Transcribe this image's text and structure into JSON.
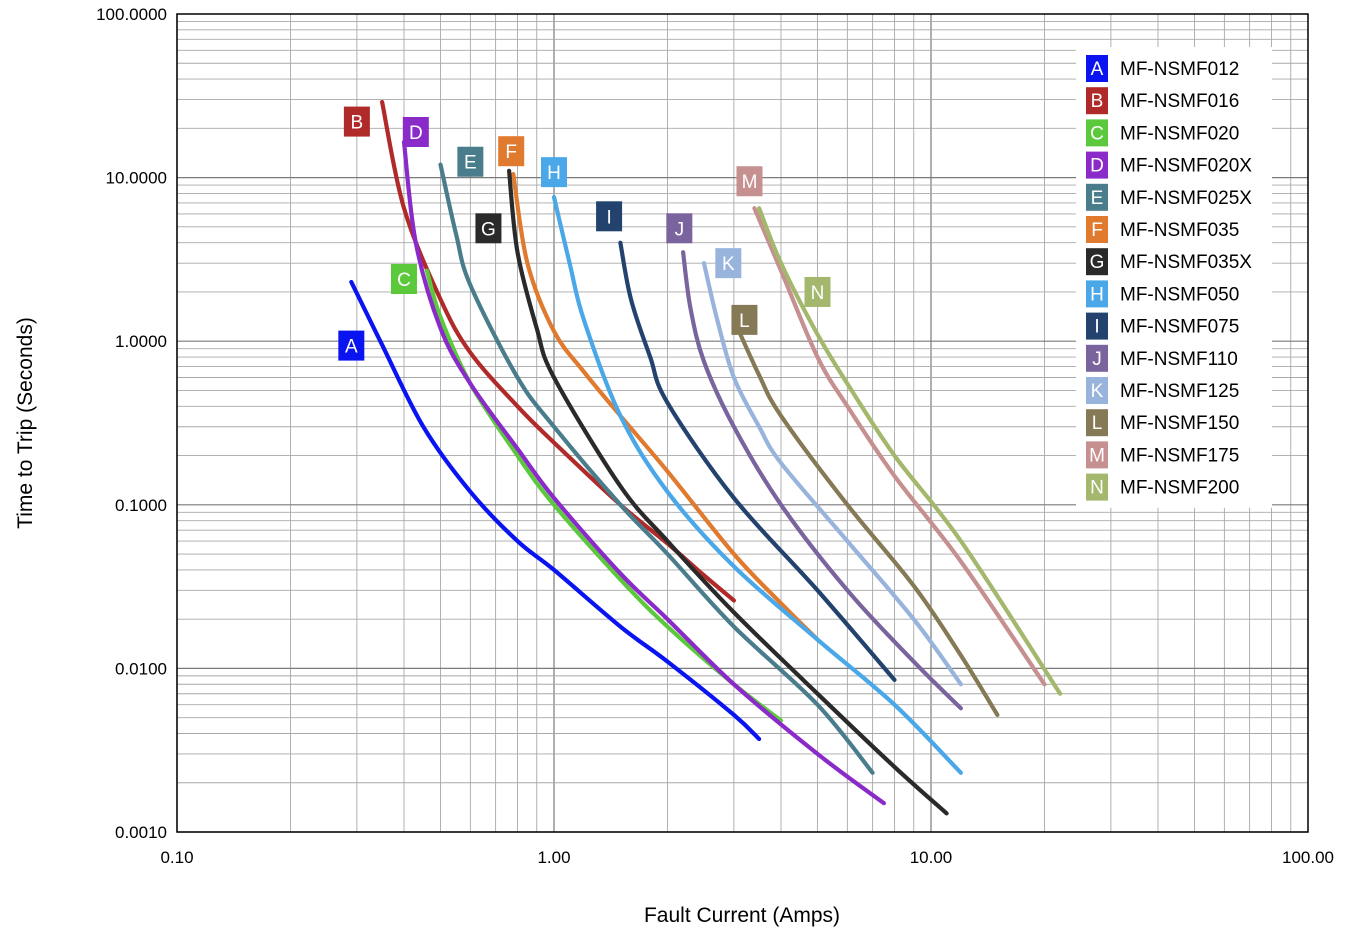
{
  "chart_data": {
    "type": "line",
    "title": "",
    "xlabel": "Fault Current (Amps)",
    "ylabel": "Time to Trip (Seconds)",
    "x_scale": "log",
    "y_scale": "log",
    "xlim": [
      0.1,
      100
    ],
    "ylim": [
      0.001,
      100
    ],
    "grid": true,
    "legend_position": "top-right",
    "x_tick_labels": [
      "0.10",
      "1.00",
      "10.00",
      "100.00"
    ],
    "y_tick_labels": [
      "100.0000",
      "10.0000",
      "1.0000",
      "0.1000",
      "0.0100",
      "0.0010"
    ],
    "series": [
      {
        "letter": "A",
        "name": "MF-NSMF012",
        "color": "#0a14f0",
        "label_at": [
          0.29,
          0.94
        ],
        "x": [
          0.29,
          0.35,
          0.45,
          0.6,
          0.8,
          1.0,
          1.5,
          2.0,
          3.0,
          3.5
        ],
        "y": [
          2.3,
          0.95,
          0.3,
          0.12,
          0.06,
          0.04,
          0.018,
          0.011,
          0.0052,
          0.0037
        ]
      },
      {
        "letter": "B",
        "name": "MF-NSMF016",
        "color": "#b02a2a",
        "label_at": [
          0.3,
          22
        ],
        "x": [
          0.35,
          0.4,
          0.5,
          0.6,
          0.8,
          1.0,
          1.5,
          2.0,
          2.5,
          3.0
        ],
        "y": [
          29,
          6.5,
          1.8,
          0.85,
          0.4,
          0.24,
          0.1,
          0.058,
          0.037,
          0.026
        ]
      },
      {
        "letter": "C",
        "name": "MF-NSMF020",
        "color": "#5cc93c",
        "label_at": [
          0.4,
          2.4
        ],
        "x": [
          0.46,
          0.5,
          0.6,
          0.8,
          1.0,
          1.5,
          2.0,
          3.0,
          4.0
        ],
        "y": [
          2.7,
          1.4,
          0.55,
          0.2,
          0.1,
          0.035,
          0.018,
          0.008,
          0.0048
        ]
      },
      {
        "letter": "D",
        "name": "MF-NSMF020X",
        "color": "#8a2ac9",
        "label_at": [
          0.43,
          19
        ],
        "x": [
          0.4,
          0.43,
          0.5,
          0.6,
          0.8,
          1.0,
          1.5,
          2.0,
          3.0,
          5.0,
          7.5
        ],
        "y": [
          16.5,
          4.0,
          1.2,
          0.55,
          0.22,
          0.11,
          0.038,
          0.02,
          0.008,
          0.003,
          0.0015
        ]
      },
      {
        "letter": "E",
        "name": "MF-NSMF025X",
        "color": "#4a7d8c",
        "label_at": [
          0.6,
          12.5
        ],
        "x": [
          0.5,
          0.55,
          0.6,
          0.8,
          1.0,
          1.5,
          2.0,
          3.0,
          5.0,
          7.0
        ],
        "y": [
          12,
          4.5,
          2.2,
          0.6,
          0.3,
          0.1,
          0.05,
          0.018,
          0.006,
          0.0023
        ]
      },
      {
        "letter": "F",
        "name": "MF-NSMF035",
        "color": "#e07a2e",
        "label_at": [
          0.77,
          14.5
        ],
        "x": [
          0.78,
          0.85,
          1.0,
          1.2,
          1.5,
          2.0,
          3.0,
          4.0,
          5.0
        ],
        "y": [
          10.5,
          3.0,
          1.15,
          0.65,
          0.35,
          0.16,
          0.05,
          0.025,
          0.015
        ]
      },
      {
        "letter": "G",
        "name": "MF-NSMF035X",
        "color": "#2a2a2a",
        "label_at": [
          0.67,
          4.9
        ],
        "x": [
          0.76,
          0.8,
          0.9,
          1.0,
          1.5,
          2.0,
          3.0,
          5.0,
          8.0,
          11.0
        ],
        "y": [
          11,
          3.5,
          1.2,
          0.6,
          0.13,
          0.06,
          0.022,
          0.007,
          0.0025,
          0.0013
        ]
      },
      {
        "letter": "H",
        "name": "MF-NSMF050",
        "color": "#4aa8e8",
        "label_at": [
          1.0,
          10.8
        ],
        "x": [
          1.0,
          1.1,
          1.2,
          1.5,
          2.0,
          3.0,
          5.0,
          8.0,
          12.0
        ],
        "y": [
          7.6,
          3.0,
          1.35,
          0.35,
          0.12,
          0.042,
          0.015,
          0.006,
          0.0023
        ]
      },
      {
        "letter": "I",
        "name": "MF-NSMF075",
        "color": "#23426e",
        "label_at": [
          1.4,
          5.8
        ],
        "x": [
          1.5,
          1.6,
          1.8,
          2.0,
          3.0,
          5.0,
          8.0
        ],
        "y": [
          4.0,
          1.8,
          0.8,
          0.42,
          0.11,
          0.03,
          0.0085
        ]
      },
      {
        "letter": "J",
        "name": "MF-NSMF110",
        "color": "#7a649e",
        "label_at": [
          2.15,
          4.9
        ],
        "x": [
          2.2,
          2.3,
          2.5,
          3.0,
          4.0,
          6.0,
          9.0,
          12.0
        ],
        "y": [
          3.5,
          1.6,
          0.75,
          0.3,
          0.1,
          0.03,
          0.011,
          0.0057
        ]
      },
      {
        "letter": "K",
        "name": "MF-NSMF125",
        "color": "#98b4dc",
        "label_at": [
          2.9,
          3.0
        ],
        "x": [
          2.5,
          2.7,
          3.0,
          3.5,
          4.0,
          6.0,
          9.0,
          12.0
        ],
        "y": [
          3.0,
          1.4,
          0.6,
          0.3,
          0.18,
          0.06,
          0.02,
          0.008
        ]
      },
      {
        "letter": "L",
        "name": "MF-NSMF150",
        "color": "#857a55",
        "label_at": [
          3.2,
          1.35
        ],
        "x": [
          3.0,
          3.5,
          4.0,
          6.0,
          9.0,
          12.0,
          15.0
        ],
        "y": [
          1.35,
          0.62,
          0.35,
          0.1,
          0.032,
          0.012,
          0.0052
        ]
      },
      {
        "letter": "M",
        "name": "MF-NSMF175",
        "color": "#c69090",
        "label_at": [
          3.3,
          9.5
        ],
        "x": [
          3.4,
          4.0,
          5.0,
          6.0,
          8.0,
          12.0,
          20.0
        ],
        "y": [
          6.5,
          2.7,
          0.8,
          0.4,
          0.15,
          0.045,
          0.008
        ]
      },
      {
        "letter": "N",
        "name": "MF-NSMF200",
        "color": "#a3b86c",
        "label_at": [
          5.0,
          2.0
        ],
        "x": [
          3.5,
          4.0,
          5.0,
          6.0,
          8.0,
          12.0,
          22.0
        ],
        "y": [
          6.5,
          3.0,
          1.1,
          0.55,
          0.2,
          0.06,
          0.007
        ]
      }
    ]
  }
}
